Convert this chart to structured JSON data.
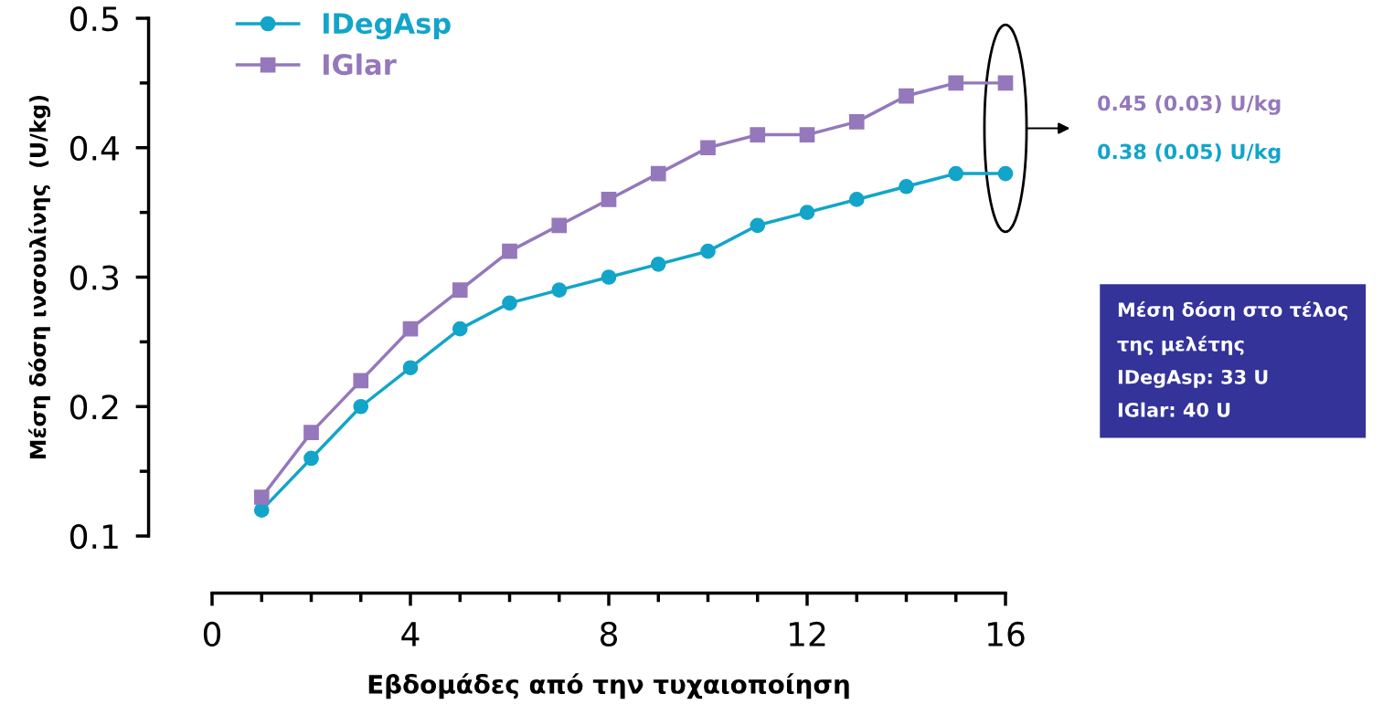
{
  "chart_data": {
    "type": "line",
    "xlabel": "Εβδομάδες από την τυχαιοποίηση",
    "ylabel": "Μέση δόση ινσουλίνης  (U/kg)",
    "x": [
      1,
      2,
      3,
      4,
      5,
      6,
      7,
      8,
      9,
      10,
      11,
      12,
      13,
      14,
      15,
      16
    ],
    "series": [
      {
        "name": "IDegAsp",
        "color": "#12a5c9",
        "marker": "circle",
        "values": [
          0.12,
          0.16,
          0.2,
          0.23,
          0.26,
          0.28,
          0.29,
          0.3,
          0.31,
          0.32,
          0.34,
          0.35,
          0.36,
          0.37,
          0.38,
          0.38
        ]
      },
      {
        "name": "IGlar",
        "color": "#9478bb",
        "marker": "square",
        "values": [
          0.13,
          0.18,
          0.22,
          0.26,
          0.29,
          0.32,
          0.34,
          0.36,
          0.38,
          0.4,
          0.41,
          0.41,
          0.42,
          0.44,
          0.45,
          0.45
        ]
      }
    ],
    "xlim": [
      0,
      16
    ],
    "xticks": [
      0,
      4,
      8,
      12,
      16
    ],
    "ylim": [
      0.1,
      0.5
    ],
    "yticks": [
      0.1,
      0.2,
      0.3,
      0.4,
      0.5
    ],
    "grid": false,
    "legend": "top left",
    "line_style": "solid",
    "annotations": [
      "0.45 (0.03) U/kg",
      "0.38 (0.05) U/kg",
      "Μέση δόση στο τέλος της μελέτης",
      "IDegAsp: 33 U",
      "IGlar: 40 U"
    ]
  }
}
